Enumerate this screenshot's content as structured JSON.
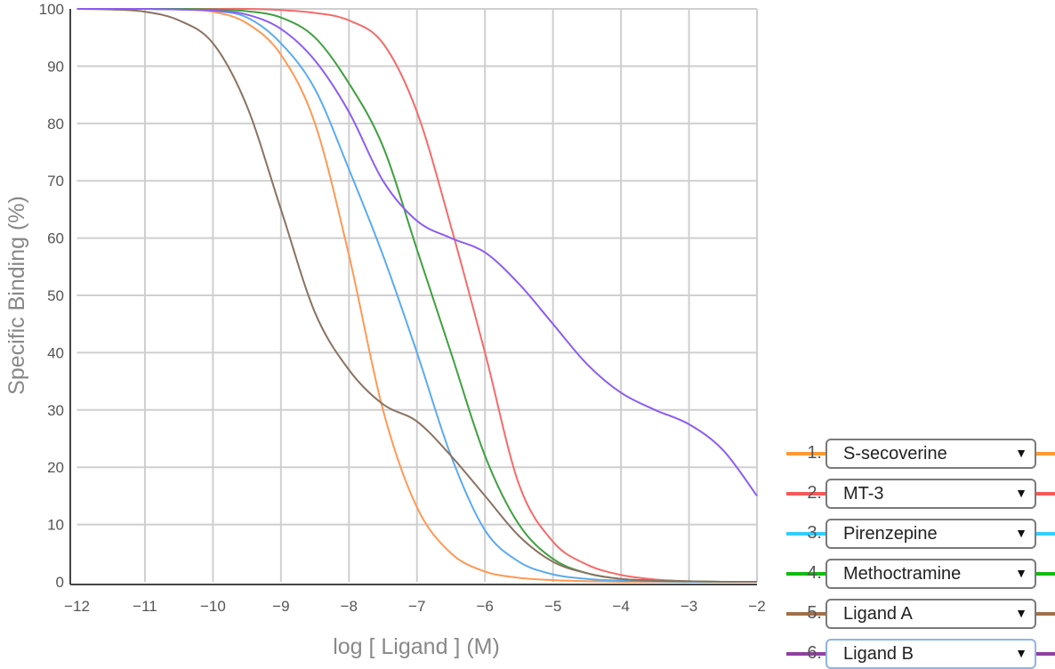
{
  "chart_data": {
    "type": "line",
    "title": "",
    "xlabel": "log [ Ligand ] (M)",
    "ylabel": "Specific Binding (%)",
    "xlim": [
      -12,
      -2
    ],
    "ylim": [
      0,
      100
    ],
    "x_ticks": [
      -12,
      -11,
      -10,
      -9,
      -8,
      -7,
      -6,
      -5,
      -4,
      -3,
      -2
    ],
    "x_tick_labels": [
      "−12",
      "−11",
      "−10",
      "−9",
      "−8",
      "−7",
      "−6",
      "−5",
      "−4",
      "−3",
      "−2"
    ],
    "y_ticks": [
      0,
      10,
      20,
      30,
      40,
      50,
      60,
      70,
      80,
      90,
      100
    ],
    "y_tick_labels": [
      "0",
      "10",
      "20",
      "30",
      "40",
      "50",
      "60",
      "70",
      "80",
      "90",
      "100"
    ],
    "grid": true,
    "legend_placement": "bottom-right",
    "x": [
      -12,
      -11.5,
      -11,
      -10.5,
      -10,
      -9.5,
      -9,
      -8.5,
      -8,
      -7.5,
      -7,
      -6.5,
      -6,
      -5.5,
      -5,
      -4.5,
      -4,
      -3.5,
      -3,
      -2.5,
      -2
    ],
    "series": [
      {
        "name": "S-secoverine",
        "color": "#ff9955",
        "legend_color": "#ff9933",
        "values": [
          100,
          100,
          100,
          99.9,
          99.5,
          97.5,
          92,
          80,
          57,
          30,
          13,
          5,
          1.8,
          0.7,
          0.3,
          0.1,
          0,
          0,
          0,
          0,
          0
        ]
      },
      {
        "name": "MT-3",
        "color": "#f56b6b",
        "legend_color": "#f55a5a",
        "values": [
          100,
          100,
          100,
          100,
          100,
          100,
          99.8,
          99.3,
          98,
          94,
          82,
          62,
          40,
          17,
          7,
          3,
          1.2,
          0.4,
          0.1,
          0,
          0
        ]
      },
      {
        "name": "Pirenzepine",
        "color": "#5aaaf0",
        "legend_color": "#33ccff",
        "values": [
          100,
          100,
          100,
          99.9,
          99.7,
          98.5,
          94,
          86,
          72,
          57,
          40,
          22,
          9,
          3.5,
          1.3,
          0.5,
          0.2,
          0.1,
          0,
          0,
          0
        ]
      },
      {
        "name": "Methoctramine",
        "color": "#3fa03f",
        "legend_color": "#11bb11",
        "values": [
          100,
          100,
          100,
          100,
          99.9,
          99.6,
          98.5,
          95,
          87,
          76,
          58,
          40,
          22,
          10,
          4,
          1.5,
          0.5,
          0.2,
          0.1,
          0,
          0
        ]
      },
      {
        "name": "Ligand A",
        "color": "#8b7262",
        "legend_color": "#a0704a",
        "values": [
          100,
          99.9,
          99.5,
          98,
          94,
          83,
          65,
          47,
          37,
          31,
          28,
          22,
          15,
          8,
          3.5,
          1.5,
          0.5,
          0.2,
          0.1,
          0,
          0
        ]
      },
      {
        "name": "Ligand B",
        "color": "#8c5cf2",
        "legend_color": "#9040a0",
        "values": [
          100,
          100,
          100,
          99.9,
          99.7,
          99,
          96.5,
          91,
          82,
          70,
          63,
          60,
          57.5,
          52,
          45,
          38,
          33,
          30,
          27.5,
          23,
          15
        ]
      }
    ]
  },
  "legend": {
    "items": [
      {
        "number": "1.",
        "label": "S-secoverine",
        "dropdown_icon": "triangle-down"
      },
      {
        "number": "2.",
        "label": "MT-3",
        "dropdown_icon": "triangle-down"
      },
      {
        "number": "3.",
        "label": "Pirenzepine",
        "dropdown_icon": "triangle-down"
      },
      {
        "number": "4.",
        "label": "Methoctramine",
        "dropdown_icon": "triangle-down"
      },
      {
        "number": "5.",
        "label": "Ligand A",
        "dropdown_icon": "triangle-down"
      },
      {
        "number": "6.",
        "label": "Ligand B",
        "dropdown_icon": "triangle-down",
        "focused": true
      }
    ],
    "arrow_glyph": "▼"
  }
}
